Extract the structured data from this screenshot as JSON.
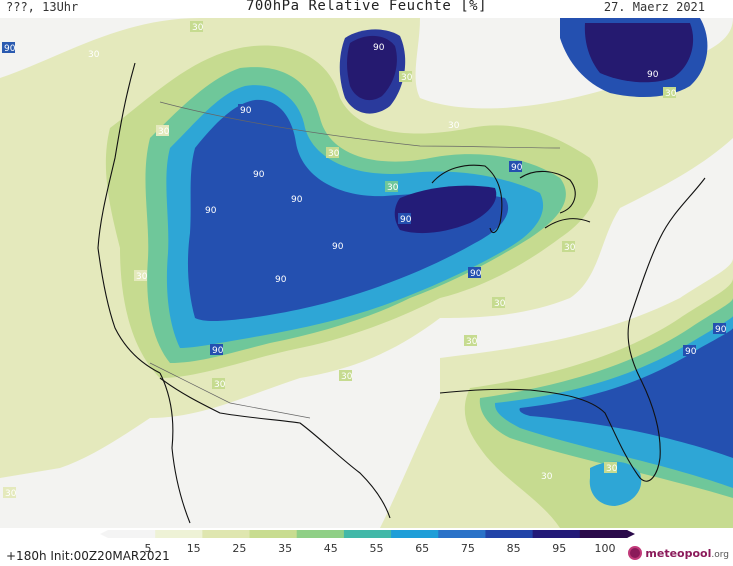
{
  "header": {
    "valid_time": "???, 13Uhr",
    "title": "700hPa Relative Feuchte [%]",
    "date": "27. Maerz 2021"
  },
  "colorbar": {
    "labels": [
      "5",
      "15",
      "25",
      "35",
      "45",
      "55",
      "65",
      "75",
      "85",
      "95",
      "100"
    ],
    "colors": [
      "#f4f4f4",
      "#eef2d6",
      "#dfe6b0",
      "#c8dc90",
      "#8fcf86",
      "#42b8a8",
      "#1f9ed8",
      "#2a72c8",
      "#2244a8",
      "#231a78",
      "#2a0a4a"
    ]
  },
  "run_info": "+180h  Init:00Z20MAR2021",
  "logo": {
    "name": "meteopool",
    "suffix": ".org"
  },
  "contour_labels": [
    "30",
    "90"
  ]
}
